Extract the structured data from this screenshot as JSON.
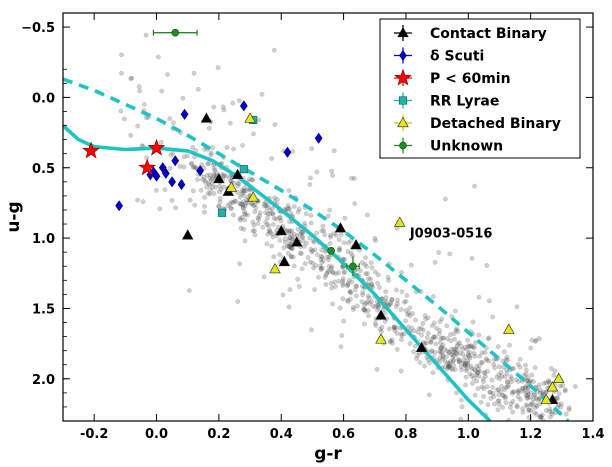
{
  "chart_data": {
    "type": "scatter",
    "xlabel": "g-r",
    "ylabel": "u-g",
    "xlim": [
      -0.3,
      1.4
    ],
    "ylim": [
      2.3,
      -0.6
    ],
    "y_inverted": true,
    "xticks": [
      "-0.2",
      "0.0",
      "0.2",
      "0.4",
      "0.6",
      "0.8",
      "1.0",
      "1.2",
      "1.4"
    ],
    "xtick_values": [
      -0.2,
      0.0,
      0.2,
      0.4,
      0.6,
      0.8,
      1.0,
      1.2,
      1.4
    ],
    "yticks": [
      "−0.5",
      "0.0",
      "0.5",
      "1.0",
      "1.5",
      "2.0"
    ],
    "ytick_values": [
      -0.5,
      0.0,
      0.5,
      1.0,
      1.5,
      2.0
    ],
    "legend_position": "top-right",
    "annotation": {
      "text": "J0903-0516",
      "x": 0.79,
      "y": 0.96
    },
    "background_stars": {
      "description": "grey field stars (stellar locus)",
      "color": "#555555",
      "locus": [
        [
          0.15,
          0.55
        ],
        [
          0.3,
          0.75
        ],
        [
          0.5,
          1.05
        ],
        [
          0.7,
          1.45
        ],
        [
          0.9,
          1.8
        ],
        [
          1.1,
          2.0
        ],
        [
          1.25,
          2.15
        ]
      ],
      "count": 1100
    },
    "curves": [
      {
        "name": "solid-cyan-curve",
        "style": "solid",
        "color": "#1ec3c3",
        "x": [
          -0.3,
          -0.25,
          -0.2,
          -0.1,
          0.0,
          0.1,
          0.18,
          0.25,
          0.3,
          0.4,
          0.5,
          0.6,
          0.7,
          0.8,
          0.9,
          1.0,
          1.07
        ],
        "y": [
          0.2,
          0.3,
          0.35,
          0.37,
          0.36,
          0.38,
          0.45,
          0.55,
          0.63,
          0.8,
          0.98,
          1.18,
          1.4,
          1.65,
          1.9,
          2.15,
          2.3
        ]
      },
      {
        "name": "dashed-cyan-curve",
        "style": "dashed",
        "color": "#1ec3c3",
        "x": [
          -0.3,
          -0.2,
          -0.1,
          0.0,
          0.1,
          0.2,
          0.3,
          0.4,
          0.5,
          0.6,
          0.7,
          0.8,
          0.9,
          1.0,
          1.1,
          1.2,
          1.32
        ],
        "y": [
          -0.13,
          -0.05,
          0.05,
          0.15,
          0.27,
          0.4,
          0.53,
          0.66,
          0.8,
          0.95,
          1.12,
          1.3,
          1.48,
          1.67,
          1.86,
          2.05,
          2.3
        ]
      }
    ],
    "series": [
      {
        "name": "Contact Binary",
        "marker": "triangle",
        "color": "#000000",
        "x": [
          0.16,
          0.2,
          0.23,
          0.26,
          0.1,
          0.4,
          0.41,
          0.45,
          0.59,
          0.64,
          0.72,
          0.85,
          1.27
        ],
        "y": [
          0.15,
          0.58,
          0.67,
          0.55,
          0.98,
          0.95,
          1.17,
          1.03,
          0.93,
          1.05,
          1.55,
          1.78,
          2.15
        ]
      },
      {
        "name": "δ Scuti",
        "marker": "diamond",
        "color": "#0000cc",
        "x": [
          -0.12,
          -0.01,
          0.0,
          0.02,
          0.03,
          0.05,
          0.06,
          0.08,
          0.09,
          0.14,
          0.28,
          0.42,
          0.52,
          -0.02
        ],
        "y": [
          0.77,
          0.53,
          0.56,
          0.5,
          0.54,
          0.6,
          0.45,
          0.62,
          0.12,
          0.52,
          0.06,
          0.39,
          0.29,
          0.55
        ]
      },
      {
        "name": "P < 60min",
        "marker": "star",
        "color": "#ff0000",
        "x": [
          -0.21,
          -0.03,
          0.0
        ],
        "y": [
          0.38,
          0.5,
          0.36
        ]
      },
      {
        "name": "RR Lyrae",
        "marker": "square",
        "color": "#20b2aa",
        "x": [
          0.21,
          0.28,
          0.31
        ],
        "y": [
          0.82,
          0.51,
          0.16
        ]
      },
      {
        "name": "Detached Binary",
        "marker": "triangle",
        "color": "#e6e619",
        "x": [
          0.24,
          0.3,
          0.31,
          0.38,
          0.72,
          0.78,
          1.13,
          1.25,
          1.27,
          1.29
        ],
        "y": [
          0.64,
          0.15,
          0.71,
          1.22,
          1.72,
          0.89,
          1.65,
          2.15,
          2.06,
          2.0
        ]
      },
      {
        "name": "Unknown",
        "marker": "circle",
        "color": "#228b22",
        "x": [
          0.06,
          0.56,
          0.63
        ],
        "y": [
          -0.46,
          1.09,
          1.2
        ],
        "xerr": [
          0.07,
          0.0,
          0.02
        ],
        "yerr": [
          0.0,
          0.0,
          0.07
        ]
      }
    ]
  }
}
